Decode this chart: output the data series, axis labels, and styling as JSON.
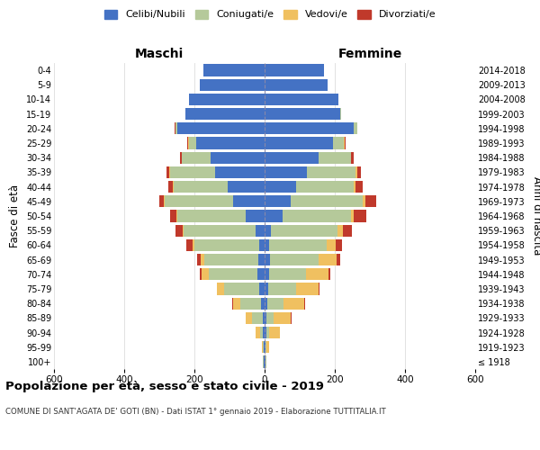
{
  "age_groups": [
    "100+",
    "95-99",
    "90-94",
    "85-89",
    "80-84",
    "75-79",
    "70-74",
    "65-69",
    "60-64",
    "55-59",
    "50-54",
    "45-49",
    "40-44",
    "35-39",
    "30-34",
    "25-29",
    "20-24",
    "15-19",
    "10-14",
    "5-9",
    "0-4"
  ],
  "birth_years": [
    "≤ 1918",
    "1919-1923",
    "1924-1928",
    "1929-1933",
    "1934-1938",
    "1939-1943",
    "1944-1948",
    "1949-1953",
    "1954-1958",
    "1959-1963",
    "1964-1968",
    "1969-1973",
    "1974-1978",
    "1979-1983",
    "1984-1988",
    "1989-1993",
    "1994-1998",
    "1999-2003",
    "2004-2008",
    "2009-2013",
    "2014-2018"
  ],
  "males": {
    "celibi": [
      2,
      2,
      4,
      5,
      10,
      15,
      20,
      18,
      15,
      25,
      55,
      90,
      105,
      140,
      155,
      195,
      250,
      225,
      215,
      185,
      175
    ],
    "coniugati": [
      2,
      3,
      10,
      30,
      60,
      100,
      140,
      155,
      185,
      205,
      195,
      195,
      155,
      130,
      80,
      20,
      5,
      0,
      0,
      0,
      0
    ],
    "vedovi": [
      0,
      2,
      12,
      18,
      20,
      20,
      20,
      10,
      5,
      3,
      2,
      2,
      2,
      2,
      2,
      2,
      0,
      0,
      0,
      0,
      0
    ],
    "divorziati": [
      0,
      0,
      0,
      2,
      2,
      2,
      5,
      10,
      18,
      22,
      18,
      14,
      12,
      8,
      5,
      3,
      2,
      0,
      0,
      0,
      0
    ]
  },
  "females": {
    "nubili": [
      2,
      2,
      4,
      5,
      8,
      10,
      12,
      15,
      12,
      18,
      50,
      75,
      90,
      120,
      155,
      195,
      255,
      215,
      210,
      180,
      170
    ],
    "coniugate": [
      2,
      4,
      10,
      20,
      45,
      80,
      105,
      140,
      165,
      190,
      195,
      205,
      165,
      140,
      90,
      30,
      8,
      2,
      0,
      0,
      0
    ],
    "vedove": [
      2,
      8,
      30,
      50,
      60,
      65,
      65,
      50,
      25,
      15,
      10,
      8,
      5,
      3,
      2,
      2,
      0,
      0,
      0,
      0,
      0
    ],
    "divorziate": [
      0,
      0,
      0,
      2,
      2,
      2,
      5,
      10,
      18,
      25,
      35,
      30,
      20,
      12,
      8,
      5,
      2,
      0,
      0,
      0,
      0
    ]
  },
  "colors": {
    "celibi": "#4472c4",
    "coniugati": "#b5c99a",
    "vedovi": "#f0c060",
    "divorziati": "#c0392b"
  },
  "title": "Popolazione per età, sesso e stato civile - 2019",
  "subtitle": "COMUNE DI SANT'AGATA DE' GOTI (BN) - Dati ISTAT 1° gennaio 2019 - Elaborazione TUTTITALIA.IT",
  "xlabel_left": "Maschi",
  "xlabel_right": "Femmine",
  "ylabel_left": "Fasce di età",
  "ylabel_right": "Anni di nascita",
  "xlim": 600,
  "bg_color": "#ffffff",
  "grid_color": "#dddddd"
}
